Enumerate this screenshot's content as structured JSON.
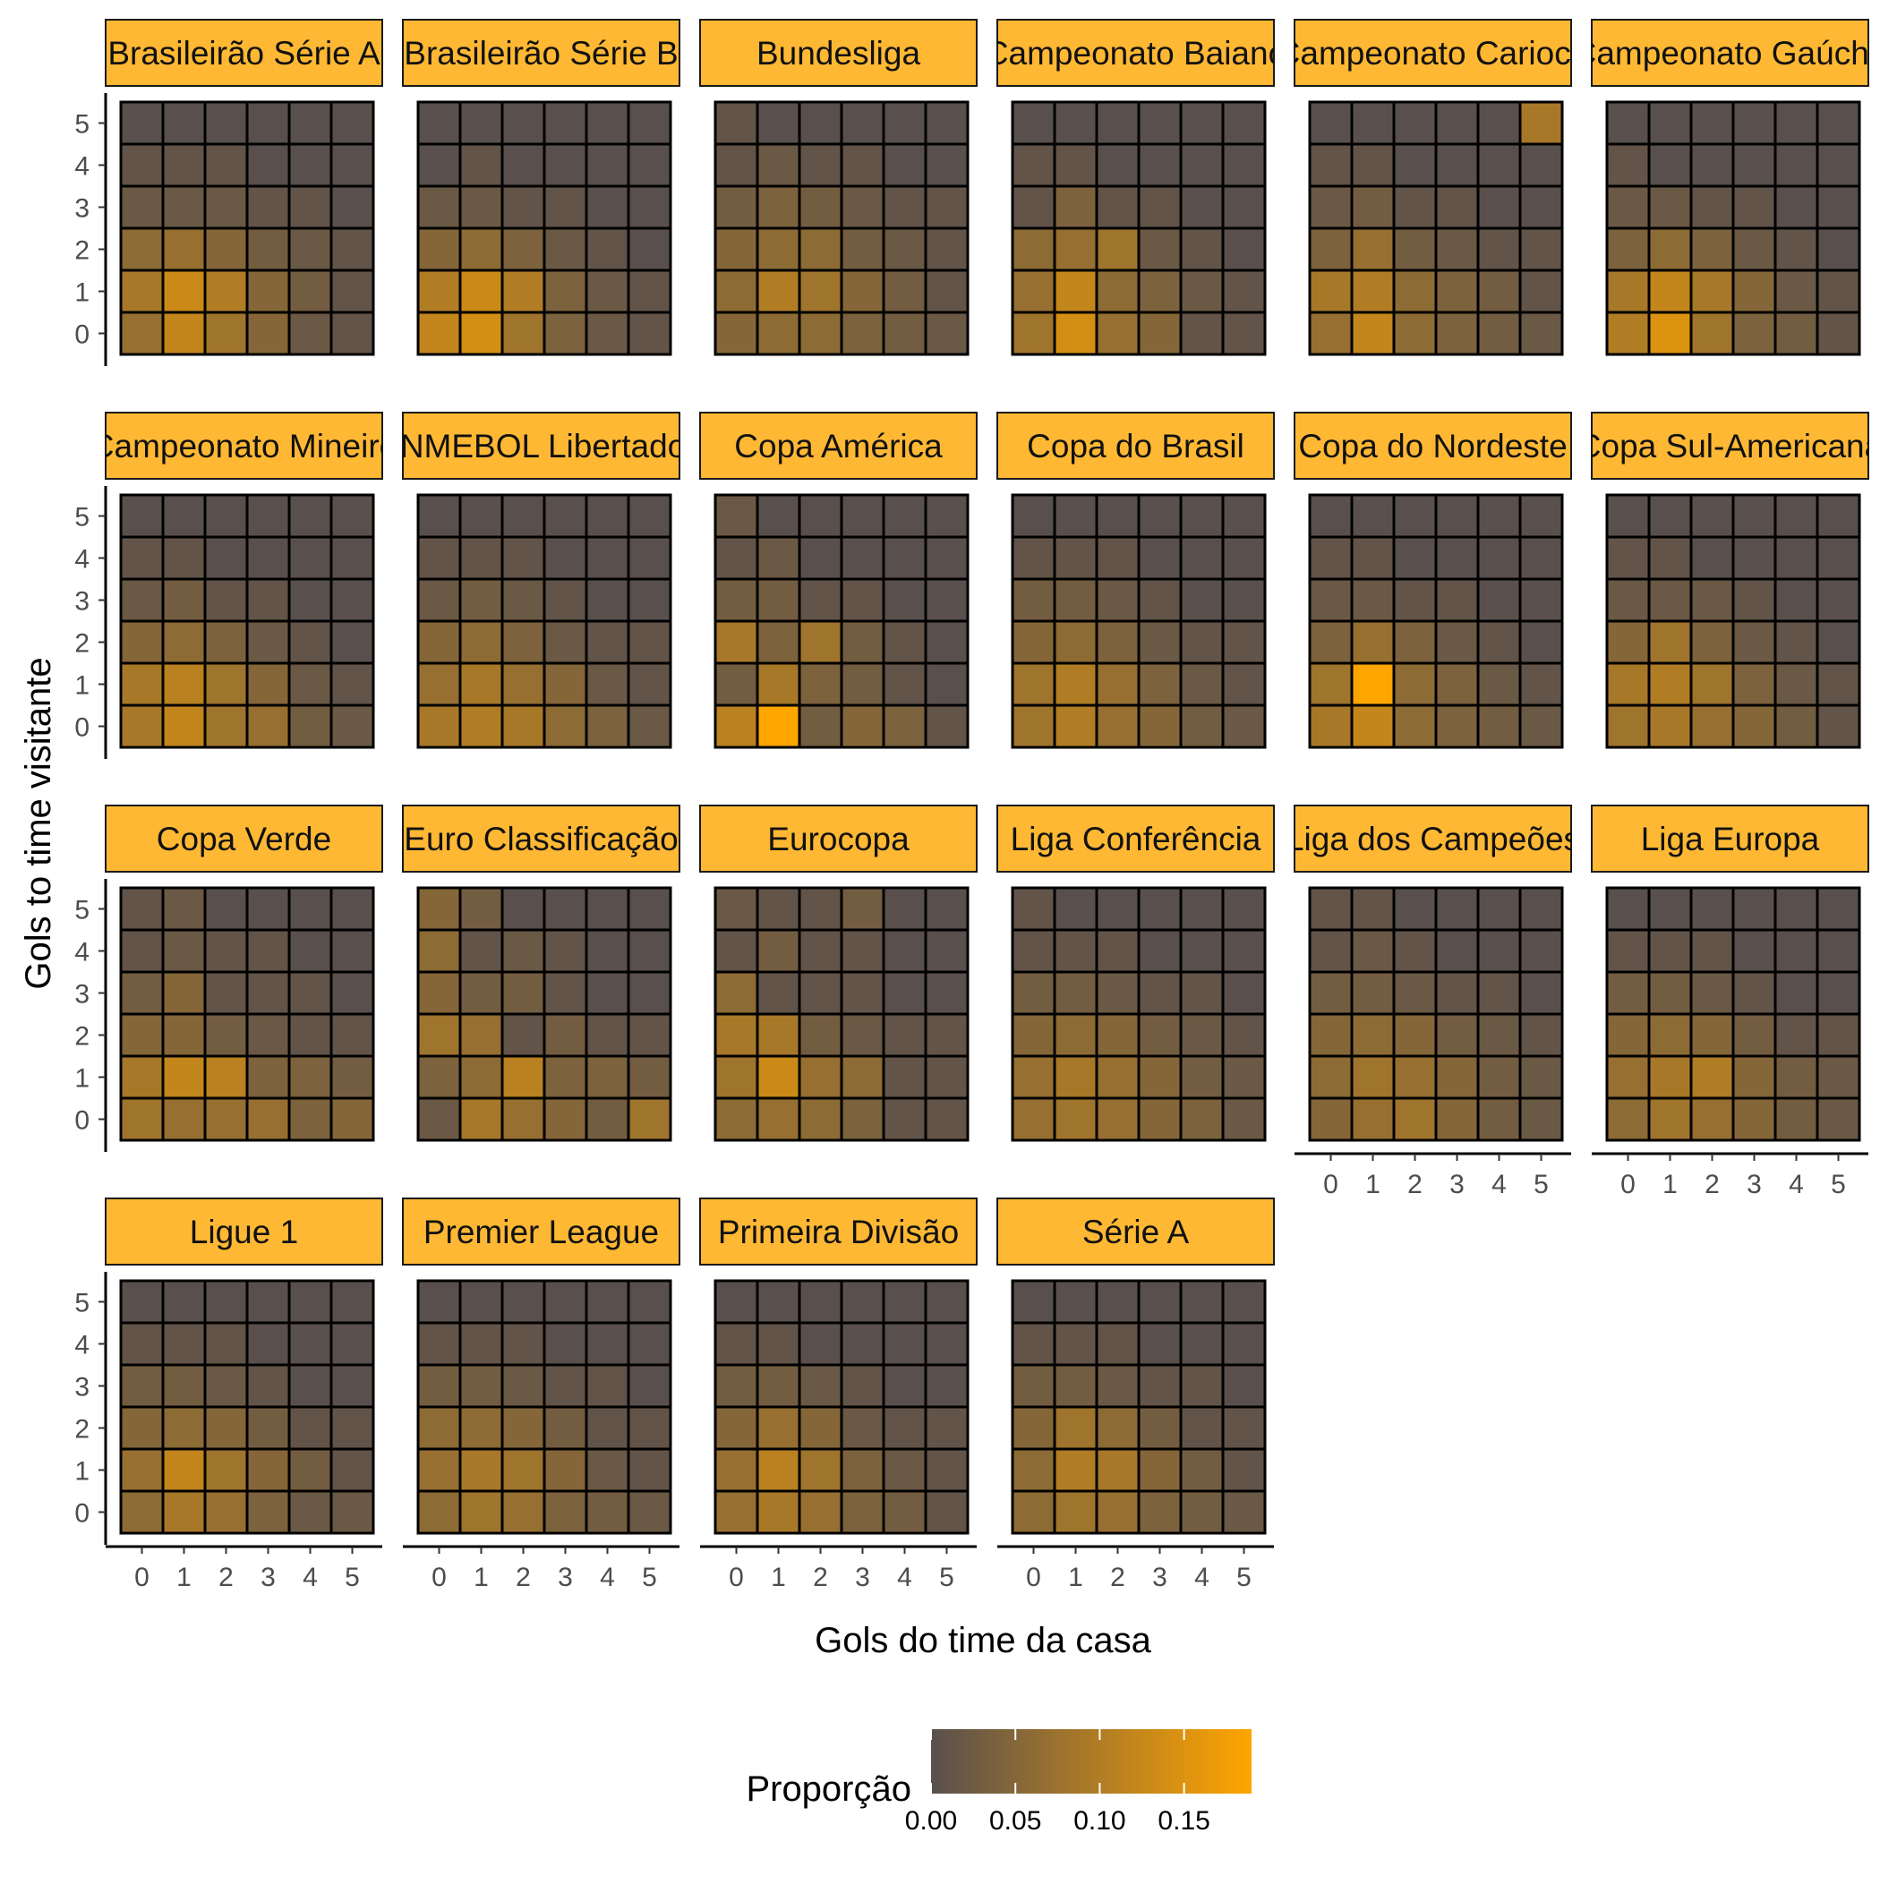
{
  "chart_data": {
    "type": "heatmap",
    "title": "",
    "xlabel": "Gols do time da casa",
    "ylabel": "Gols to time visitante",
    "x_categories": [
      0,
      1,
      2,
      3,
      4,
      5
    ],
    "y_categories": [
      0,
      1,
      2,
      3,
      4,
      5
    ],
    "matrix_orientation": "rows are visitor goals 0..5 (bottom to top), columns are home goals 0..5",
    "legend": {
      "title": "Proporção",
      "position": "bottom",
      "range": [
        0,
        0.19
      ],
      "ticks": [
        0.0,
        0.05,
        0.1,
        0.15
      ],
      "tick_labels": [
        "0.00",
        "0.05",
        "0.10",
        "0.15"
      ],
      "low_color": "#59504d",
      "high_color": "#ffa500"
    },
    "strip_color": "#ffb833",
    "panels": [
      {
        "name": "Brasileirão Série A",
        "values": [
          [
            0.07,
            0.12,
            0.08,
            0.05,
            0.02,
            0.01
          ],
          [
            0.09,
            0.13,
            0.1,
            0.05,
            0.03,
            0.01
          ],
          [
            0.06,
            0.07,
            0.05,
            0.03,
            0.02,
            0.01
          ],
          [
            0.02,
            0.02,
            0.02,
            0.01,
            0.01,
            0.0
          ],
          [
            0.01,
            0.01,
            0.01,
            0.0,
            0.0,
            0.0
          ],
          [
            0.0,
            0.0,
            0.0,
            0.0,
            0.0,
            0.0
          ]
        ]
      },
      {
        "name": "Brasileirão Série B",
        "values": [
          [
            0.12,
            0.14,
            0.08,
            0.04,
            0.02,
            0.01
          ],
          [
            0.1,
            0.13,
            0.1,
            0.04,
            0.02,
            0.01
          ],
          [
            0.05,
            0.06,
            0.04,
            0.02,
            0.01,
            0.0
          ],
          [
            0.02,
            0.02,
            0.01,
            0.01,
            0.0,
            0.0
          ],
          [
            0.0,
            0.01,
            0.0,
            0.0,
            0.0,
            0.0
          ],
          [
            0.0,
            0.0,
            0.0,
            0.0,
            0.0,
            0.0
          ]
        ]
      },
      {
        "name": "Bundesliga",
        "values": [
          [
            0.05,
            0.06,
            0.06,
            0.04,
            0.03,
            0.02
          ],
          [
            0.06,
            0.1,
            0.08,
            0.05,
            0.03,
            0.01
          ],
          [
            0.05,
            0.06,
            0.06,
            0.03,
            0.02,
            0.01
          ],
          [
            0.03,
            0.04,
            0.03,
            0.02,
            0.01,
            0.01
          ],
          [
            0.01,
            0.02,
            0.01,
            0.01,
            0.0,
            0.0
          ],
          [
            0.01,
            0.0,
            0.0,
            0.0,
            0.0,
            0.0
          ]
        ]
      },
      {
        "name": "Campeonato Baiano",
        "values": [
          [
            0.08,
            0.14,
            0.07,
            0.05,
            0.01,
            0.01
          ],
          [
            0.07,
            0.12,
            0.06,
            0.04,
            0.02,
            0.01
          ],
          [
            0.06,
            0.07,
            0.08,
            0.02,
            0.01,
            0.0
          ],
          [
            0.01,
            0.04,
            0.01,
            0.01,
            0.0,
            0.0
          ],
          [
            0.01,
            0.01,
            0.0,
            0.0,
            0.0,
            0.0
          ],
          [
            0.0,
            0.0,
            0.0,
            0.0,
            0.0,
            0.0
          ]
        ]
      },
      {
        "name": "Campeonato Carioca",
        "values": [
          [
            0.07,
            0.12,
            0.06,
            0.04,
            0.03,
            0.02
          ],
          [
            0.09,
            0.1,
            0.06,
            0.04,
            0.03,
            0.01
          ],
          [
            0.04,
            0.07,
            0.03,
            0.02,
            0.01,
            0.01
          ],
          [
            0.02,
            0.03,
            0.01,
            0.01,
            0.0,
            0.0
          ],
          [
            0.01,
            0.01,
            0.0,
            0.0,
            0.0,
            0.0
          ],
          [
            0.0,
            0.0,
            0.0,
            0.0,
            0.0,
            0.09
          ]
        ]
      },
      {
        "name": "Campeonato Gaúcho",
        "values": [
          [
            0.1,
            0.15,
            0.08,
            0.04,
            0.03,
            0.01
          ],
          [
            0.09,
            0.12,
            0.09,
            0.05,
            0.02,
            0.01
          ],
          [
            0.04,
            0.06,
            0.04,
            0.02,
            0.01,
            0.0
          ],
          [
            0.02,
            0.02,
            0.01,
            0.01,
            0.0,
            0.0
          ],
          [
            0.01,
            0.0,
            0.0,
            0.0,
            0.0,
            0.0
          ],
          [
            0.0,
            0.0,
            0.0,
            0.0,
            0.0,
            0.0
          ]
        ]
      },
      {
        "name": "Campeonato Mineiro",
        "values": [
          [
            0.09,
            0.12,
            0.08,
            0.07,
            0.03,
            0.02
          ],
          [
            0.09,
            0.11,
            0.08,
            0.05,
            0.02,
            0.01
          ],
          [
            0.05,
            0.06,
            0.04,
            0.02,
            0.01,
            0.0
          ],
          [
            0.02,
            0.03,
            0.01,
            0.01,
            0.0,
            0.0
          ],
          [
            0.01,
            0.01,
            0.0,
            0.0,
            0.0,
            0.0
          ],
          [
            0.0,
            0.0,
            0.0,
            0.0,
            0.0,
            0.0
          ]
        ]
      },
      {
        "name": "CONMEBOL Libertadores",
        "values": [
          [
            0.09,
            0.1,
            0.09,
            0.06,
            0.04,
            0.02
          ],
          [
            0.07,
            0.09,
            0.07,
            0.05,
            0.02,
            0.01
          ],
          [
            0.05,
            0.06,
            0.04,
            0.02,
            0.01,
            0.01
          ],
          [
            0.02,
            0.03,
            0.02,
            0.01,
            0.0,
            0.0
          ],
          [
            0.01,
            0.01,
            0.01,
            0.0,
            0.0,
            0.0
          ],
          [
            0.0,
            0.0,
            0.0,
            0.0,
            0.0,
            0.0
          ]
        ]
      },
      {
        "name": "Copa América",
        "values": [
          [
            0.11,
            0.19,
            0.03,
            0.05,
            0.04,
            0.01
          ],
          [
            0.03,
            0.09,
            0.04,
            0.03,
            0.01,
            0.0
          ],
          [
            0.09,
            0.04,
            0.08,
            0.03,
            0.01,
            0.0
          ],
          [
            0.03,
            0.03,
            0.01,
            0.01,
            0.0,
            0.0
          ],
          [
            0.01,
            0.02,
            0.0,
            0.0,
            0.0,
            0.0
          ],
          [
            0.02,
            0.0,
            0.0,
            0.0,
            0.0,
            0.0
          ]
        ]
      },
      {
        "name": "Copa do Brasil",
        "values": [
          [
            0.08,
            0.1,
            0.07,
            0.05,
            0.03,
            0.02
          ],
          [
            0.08,
            0.1,
            0.07,
            0.04,
            0.02,
            0.01
          ],
          [
            0.05,
            0.06,
            0.04,
            0.02,
            0.01,
            0.01
          ],
          [
            0.03,
            0.03,
            0.02,
            0.01,
            0.0,
            0.0
          ],
          [
            0.01,
            0.01,
            0.01,
            0.0,
            0.0,
            0.0
          ],
          [
            0.0,
            0.0,
            0.0,
            0.0,
            0.0,
            0.0
          ]
        ]
      },
      {
        "name": "Copa do Nordeste",
        "values": [
          [
            0.09,
            0.12,
            0.06,
            0.04,
            0.03,
            0.02
          ],
          [
            0.08,
            0.19,
            0.06,
            0.04,
            0.02,
            0.01
          ],
          [
            0.04,
            0.07,
            0.04,
            0.02,
            0.01,
            0.0
          ],
          [
            0.02,
            0.02,
            0.01,
            0.01,
            0.0,
            0.0
          ],
          [
            0.01,
            0.01,
            0.0,
            0.0,
            0.0,
            0.0
          ],
          [
            0.0,
            0.0,
            0.0,
            0.0,
            0.0,
            0.0
          ]
        ]
      },
      {
        "name": "Copa Sul-Americana",
        "values": [
          [
            0.08,
            0.09,
            0.07,
            0.05,
            0.03,
            0.01
          ],
          [
            0.09,
            0.1,
            0.08,
            0.04,
            0.02,
            0.01
          ],
          [
            0.05,
            0.08,
            0.04,
            0.02,
            0.01,
            0.0
          ],
          [
            0.02,
            0.02,
            0.02,
            0.01,
            0.0,
            0.0
          ],
          [
            0.01,
            0.01,
            0.0,
            0.0,
            0.0,
            0.0
          ],
          [
            0.0,
            0.0,
            0.0,
            0.0,
            0.0,
            0.0
          ]
        ]
      },
      {
        "name": "Copa Verde",
        "values": [
          [
            0.08,
            0.07,
            0.07,
            0.07,
            0.04,
            0.05
          ],
          [
            0.09,
            0.12,
            0.11,
            0.04,
            0.04,
            0.03
          ],
          [
            0.05,
            0.05,
            0.03,
            0.02,
            0.01,
            0.01
          ],
          [
            0.03,
            0.05,
            0.01,
            0.01,
            0.01,
            0.0
          ],
          [
            0.01,
            0.02,
            0.01,
            0.01,
            0.0,
            0.0
          ],
          [
            0.01,
            0.02,
            0.0,
            0.0,
            0.0,
            0.0
          ]
        ]
      },
      {
        "name": "Euro Classificação",
        "values": [
          [
            0.02,
            0.09,
            0.07,
            0.05,
            0.03,
            0.08
          ],
          [
            0.04,
            0.06,
            0.11,
            0.04,
            0.04,
            0.03
          ],
          [
            0.08,
            0.07,
            0.01,
            0.03,
            0.01,
            0.01
          ],
          [
            0.05,
            0.03,
            0.03,
            0.01,
            0.0,
            0.0
          ],
          [
            0.06,
            0.01,
            0.02,
            0.01,
            0.0,
            0.0
          ],
          [
            0.05,
            0.03,
            0.0,
            0.0,
            0.0,
            0.0
          ]
        ]
      },
      {
        "name": "Eurocopa",
        "values": [
          [
            0.06,
            0.07,
            0.06,
            0.04,
            0.01,
            0.01
          ],
          [
            0.08,
            0.13,
            0.07,
            0.06,
            0.01,
            0.01
          ],
          [
            0.09,
            0.09,
            0.03,
            0.02,
            0.01,
            0.01
          ],
          [
            0.06,
            0.01,
            0.01,
            0.01,
            0.0,
            0.0
          ],
          [
            0.01,
            0.03,
            0.01,
            0.01,
            0.0,
            0.0
          ],
          [
            0.02,
            0.01,
            0.01,
            0.03,
            0.0,
            0.0
          ]
        ]
      },
      {
        "name": "Liga Conferência",
        "values": [
          [
            0.07,
            0.08,
            0.07,
            0.05,
            0.04,
            0.02
          ],
          [
            0.07,
            0.09,
            0.07,
            0.05,
            0.03,
            0.02
          ],
          [
            0.05,
            0.06,
            0.05,
            0.03,
            0.02,
            0.01
          ],
          [
            0.03,
            0.03,
            0.02,
            0.01,
            0.01,
            0.0
          ],
          [
            0.01,
            0.01,
            0.01,
            0.0,
            0.0,
            0.0
          ],
          [
            0.01,
            0.0,
            0.0,
            0.0,
            0.0,
            0.0
          ]
        ]
      },
      {
        "name": "Liga dos Campeões",
        "values": [
          [
            0.05,
            0.07,
            0.08,
            0.05,
            0.03,
            0.02
          ],
          [
            0.06,
            0.08,
            0.07,
            0.05,
            0.03,
            0.02
          ],
          [
            0.05,
            0.06,
            0.05,
            0.03,
            0.02,
            0.01
          ],
          [
            0.03,
            0.03,
            0.02,
            0.01,
            0.01,
            0.0
          ],
          [
            0.01,
            0.02,
            0.01,
            0.0,
            0.0,
            0.0
          ],
          [
            0.01,
            0.01,
            0.0,
            0.0,
            0.0,
            0.0
          ]
        ]
      },
      {
        "name": "Liga Europa",
        "values": [
          [
            0.06,
            0.08,
            0.07,
            0.05,
            0.03,
            0.02
          ],
          [
            0.07,
            0.09,
            0.1,
            0.05,
            0.03,
            0.02
          ],
          [
            0.05,
            0.06,
            0.05,
            0.03,
            0.01,
            0.01
          ],
          [
            0.03,
            0.03,
            0.02,
            0.01,
            0.0,
            0.0
          ],
          [
            0.01,
            0.01,
            0.01,
            0.0,
            0.0,
            0.0
          ],
          [
            0.0,
            0.0,
            0.0,
            0.0,
            0.0,
            0.0
          ]
        ]
      },
      {
        "name": "Ligue 1",
        "values": [
          [
            0.06,
            0.09,
            0.07,
            0.04,
            0.02,
            0.02
          ],
          [
            0.07,
            0.12,
            0.08,
            0.05,
            0.03,
            0.01
          ],
          [
            0.05,
            0.06,
            0.05,
            0.03,
            0.01,
            0.01
          ],
          [
            0.03,
            0.03,
            0.02,
            0.01,
            0.0,
            0.0
          ],
          [
            0.01,
            0.01,
            0.01,
            0.0,
            0.0,
            0.0
          ],
          [
            0.0,
            0.0,
            0.0,
            0.0,
            0.0,
            0.0
          ]
        ]
      },
      {
        "name": "Premier League",
        "values": [
          [
            0.06,
            0.08,
            0.07,
            0.04,
            0.03,
            0.02
          ],
          [
            0.07,
            0.09,
            0.08,
            0.05,
            0.02,
            0.01
          ],
          [
            0.06,
            0.06,
            0.05,
            0.03,
            0.01,
            0.01
          ],
          [
            0.03,
            0.03,
            0.02,
            0.01,
            0.01,
            0.0
          ],
          [
            0.01,
            0.01,
            0.01,
            0.0,
            0.0,
            0.0
          ],
          [
            0.0,
            0.0,
            0.0,
            0.0,
            0.0,
            0.0
          ]
        ]
      },
      {
        "name": "Primeira Divisão",
        "values": [
          [
            0.07,
            0.09,
            0.07,
            0.04,
            0.03,
            0.01
          ],
          [
            0.07,
            0.11,
            0.08,
            0.04,
            0.02,
            0.01
          ],
          [
            0.05,
            0.07,
            0.05,
            0.02,
            0.01,
            0.01
          ],
          [
            0.03,
            0.03,
            0.02,
            0.01,
            0.0,
            0.0
          ],
          [
            0.01,
            0.01,
            0.0,
            0.0,
            0.0,
            0.0
          ],
          [
            0.0,
            0.0,
            0.0,
            0.0,
            0.0,
            0.0
          ]
        ]
      },
      {
        "name": "Série A",
        "values": [
          [
            0.06,
            0.08,
            0.07,
            0.04,
            0.03,
            0.02
          ],
          [
            0.06,
            0.1,
            0.09,
            0.05,
            0.03,
            0.01
          ],
          [
            0.05,
            0.08,
            0.06,
            0.03,
            0.01,
            0.01
          ],
          [
            0.03,
            0.03,
            0.02,
            0.01,
            0.01,
            0.0
          ],
          [
            0.01,
            0.01,
            0.01,
            0.0,
            0.0,
            0.0
          ],
          [
            0.0,
            0.0,
            0.0,
            0.0,
            0.0,
            0.0
          ]
        ]
      }
    ]
  }
}
